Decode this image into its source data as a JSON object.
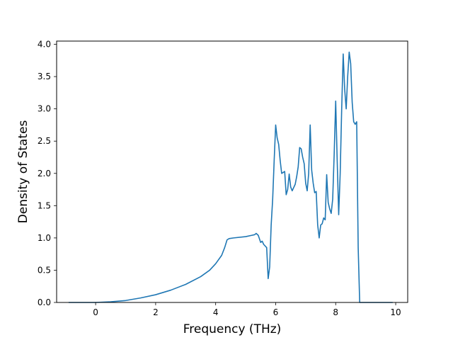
{
  "chart_data": {
    "type": "line",
    "title": "",
    "xlabel": "Frequency (THz)",
    "ylabel": "Density of States",
    "xlim": [
      -1.3,
      10.4
    ],
    "ylim": [
      0.0,
      4.05
    ],
    "grid": false,
    "xticks": [
      0,
      2,
      4,
      6,
      8,
      10
    ],
    "xtick_labels": [
      "0",
      "2",
      "4",
      "6",
      "8",
      "10"
    ],
    "yticks": [
      0.0,
      0.5,
      1.0,
      1.5,
      2.0,
      2.5,
      3.0,
      3.5,
      4.0
    ],
    "ytick_labels": [
      "0.0",
      "0.5",
      "1.0",
      "1.5",
      "2.0",
      "2.5",
      "3.0",
      "3.5",
      "4.0"
    ],
    "series": [
      {
        "color": "#1f77b4",
        "x": [
          -0.9,
          0.0,
          0.5,
          1.0,
          1.5,
          2.0,
          2.5,
          3.0,
          3.5,
          3.8,
          4.0,
          4.2,
          4.3,
          4.38,
          4.45,
          4.6,
          5.0,
          5.2,
          5.3,
          5.35,
          5.42,
          5.5,
          5.55,
          5.6,
          5.7,
          5.75,
          5.8,
          5.85,
          5.9,
          5.95,
          6.0,
          6.05,
          6.1,
          6.15,
          6.2,
          6.3,
          6.35,
          6.4,
          6.45,
          6.5,
          6.55,
          6.6,
          6.65,
          6.7,
          6.75,
          6.8,
          6.85,
          6.9,
          6.95,
          7.0,
          7.05,
          7.1,
          7.15,
          7.2,
          7.25,
          7.3,
          7.35,
          7.4,
          7.45,
          7.5,
          7.55,
          7.6,
          7.65,
          7.7,
          7.75,
          7.8,
          7.85,
          7.9,
          7.95,
          8.0,
          8.05,
          8.1,
          8.15,
          8.2,
          8.25,
          8.3,
          8.35,
          8.4,
          8.45,
          8.5,
          8.55,
          8.6,
          8.65,
          8.7,
          8.75,
          8.8,
          8.85,
          8.9,
          8.95,
          9.0,
          9.5,
          9.9
        ],
        "y": [
          0.0,
          0.0,
          0.01,
          0.03,
          0.07,
          0.12,
          0.19,
          0.28,
          0.4,
          0.5,
          0.6,
          0.73,
          0.85,
          0.97,
          0.99,
          1.0,
          1.02,
          1.04,
          1.05,
          1.07,
          1.04,
          0.93,
          0.95,
          0.9,
          0.85,
          0.37,
          0.55,
          1.2,
          1.6,
          2.2,
          2.75,
          2.55,
          2.45,
          2.2,
          2.0,
          2.03,
          1.67,
          1.75,
          1.99,
          1.79,
          1.73,
          1.78,
          1.83,
          1.95,
          2.1,
          2.4,
          2.38,
          2.25,
          2.15,
          1.85,
          1.73,
          2.0,
          2.75,
          2.05,
          1.85,
          1.7,
          1.72,
          1.2,
          1.0,
          1.2,
          1.22,
          1.31,
          1.28,
          1.98,
          1.55,
          1.45,
          1.38,
          1.6,
          2.3,
          3.12,
          2.2,
          1.36,
          2.0,
          3.0,
          3.85,
          3.3,
          3.0,
          3.5,
          3.88,
          3.7,
          3.1,
          2.8,
          2.76,
          2.8,
          0.85,
          0.0,
          0.0,
          0.0,
          0.0,
          0.0,
          0.0,
          0.0
        ]
      }
    ]
  }
}
